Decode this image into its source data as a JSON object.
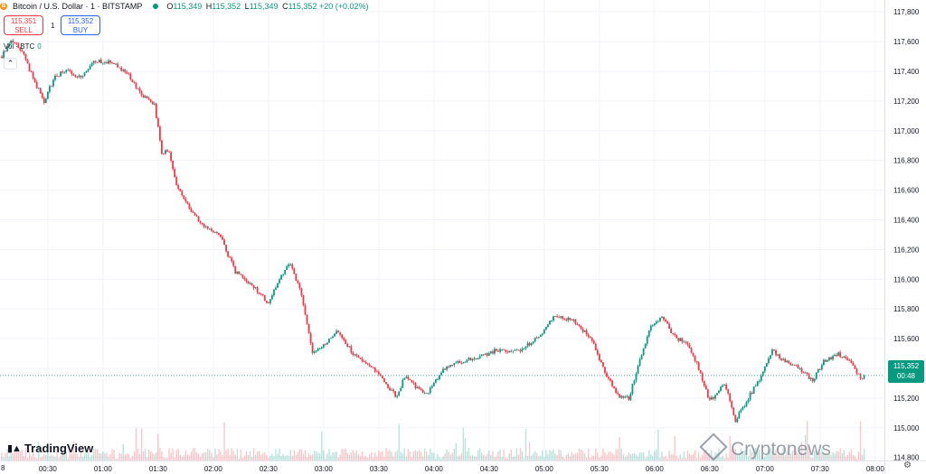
{
  "header": {
    "coin_icon": "B",
    "symbol": "Bitcoin / U.S. Dollar · 1 · BITSTAMP",
    "open_label": "O",
    "open": "115,349",
    "high_label": "H",
    "high": "115,352",
    "low_label": "L",
    "low": "115,349",
    "close_label": "C",
    "close": "115,352",
    "change": "+20 (+0.02%)"
  },
  "trade": {
    "sell_price": "115,351",
    "sell_label": "SELL",
    "spread": "1",
    "buy_price": "115,352",
    "buy_label": "BUY"
  },
  "volume": {
    "label": "Vol · BTC",
    "value": "0"
  },
  "collapse_icon": "chevron-up-icon",
  "last_price": {
    "price": "115,352",
    "countdown": "00:48"
  },
  "branding": {
    "logo": "TradingView",
    "watermark": "Cryptonews"
  },
  "left_clipped_tick": "8",
  "colors": {
    "up": "#089981",
    "down": "#f23645",
    "grid": "#f0f3fa",
    "text": "#131722"
  },
  "chart_data": {
    "type": "candlestick",
    "title": "Bitcoin / U.S. Dollar · 1 · BITSTAMP",
    "y_ticks": [
      "117,800",
      "117,600",
      "117,400",
      "117,200",
      "117,000",
      "116,800",
      "116,600",
      "116,400",
      "116,200",
      "116,000",
      "115,800",
      "115,600",
      "115,400",
      "115,200",
      "115,000",
      "114,800"
    ],
    "x_ticks": [
      "00:30",
      "01:00",
      "01:30",
      "02:00",
      "02:30",
      "03:00",
      "03:30",
      "04:00",
      "04:30",
      "05:00",
      "05:30",
      "06:00",
      "06:30",
      "07:00",
      "07:30",
      "08:00"
    ],
    "ylim": [
      114780,
      117880
    ],
    "x_range": [
      "00:04",
      "08:05"
    ],
    "grid": true,
    "last_price": 115352,
    "price_path": [
      {
        "t": "00:05",
        "p": 117500
      },
      {
        "t": "00:10",
        "p": 117620
      },
      {
        "t": "00:16",
        "p": 117540
      },
      {
        "t": "00:22",
        "p": 117350
      },
      {
        "t": "00:28",
        "p": 117200
      },
      {
        "t": "00:34",
        "p": 117370
      },
      {
        "t": "00:40",
        "p": 117400
      },
      {
        "t": "00:48",
        "p": 117360
      },
      {
        "t": "00:56",
        "p": 117470
      },
      {
        "t": "01:06",
        "p": 117460
      },
      {
        "t": "01:14",
        "p": 117370
      },
      {
        "t": "01:22",
        "p": 117230
      },
      {
        "t": "01:28",
        "p": 117180
      },
      {
        "t": "01:32",
        "p": 116850
      },
      {
        "t": "01:36",
        "p": 116870
      },
      {
        "t": "01:40",
        "p": 116640
      },
      {
        "t": "01:48",
        "p": 116450
      },
      {
        "t": "01:56",
        "p": 116350
      },
      {
        "t": "02:04",
        "p": 116280
      },
      {
        "t": "02:12",
        "p": 116050
      },
      {
        "t": "02:22",
        "p": 115950
      },
      {
        "t": "02:30",
        "p": 115840
      },
      {
        "t": "02:38",
        "p": 116050
      },
      {
        "t": "02:42",
        "p": 116100
      },
      {
        "t": "02:48",
        "p": 115900
      },
      {
        "t": "02:54",
        "p": 115500
      },
      {
        "t": "03:00",
        "p": 115550
      },
      {
        "t": "03:08",
        "p": 115650
      },
      {
        "t": "03:16",
        "p": 115500
      },
      {
        "t": "03:26",
        "p": 115420
      },
      {
        "t": "03:34",
        "p": 115300
      },
      {
        "t": "03:40",
        "p": 115200
      },
      {
        "t": "03:44",
        "p": 115350
      },
      {
        "t": "03:50",
        "p": 115280
      },
      {
        "t": "03:56",
        "p": 115220
      },
      {
        "t": "04:04",
        "p": 115380
      },
      {
        "t": "04:12",
        "p": 115430
      },
      {
        "t": "04:22",
        "p": 115470
      },
      {
        "t": "04:34",
        "p": 115520
      },
      {
        "t": "04:46",
        "p": 115520
      },
      {
        "t": "04:56",
        "p": 115600
      },
      {
        "t": "05:06",
        "p": 115760
      },
      {
        "t": "05:16",
        "p": 115720
      },
      {
        "t": "05:26",
        "p": 115600
      },
      {
        "t": "05:32",
        "p": 115400
      },
      {
        "t": "05:40",
        "p": 115220
      },
      {
        "t": "05:46",
        "p": 115200
      },
      {
        "t": "05:52",
        "p": 115450
      },
      {
        "t": "05:58",
        "p": 115680
      },
      {
        "t": "06:04",
        "p": 115760
      },
      {
        "t": "06:10",
        "p": 115620
      },
      {
        "t": "06:18",
        "p": 115560
      },
      {
        "t": "06:24",
        "p": 115400
      },
      {
        "t": "06:30",
        "p": 115180
      },
      {
        "t": "06:38",
        "p": 115300
      },
      {
        "t": "06:44",
        "p": 115050
      },
      {
        "t": "06:50",
        "p": 115180
      },
      {
        "t": "06:58",
        "p": 115350
      },
      {
        "t": "07:04",
        "p": 115520
      },
      {
        "t": "07:10",
        "p": 115460
      },
      {
        "t": "07:18",
        "p": 115400
      },
      {
        "t": "07:26",
        "p": 115320
      },
      {
        "t": "07:32",
        "p": 115450
      },
      {
        "t": "07:40",
        "p": 115500
      },
      {
        "t": "07:48",
        "p": 115420
      },
      {
        "t": "07:52",
        "p": 115340
      },
      {
        "t": "07:54",
        "p": 115352
      }
    ]
  }
}
